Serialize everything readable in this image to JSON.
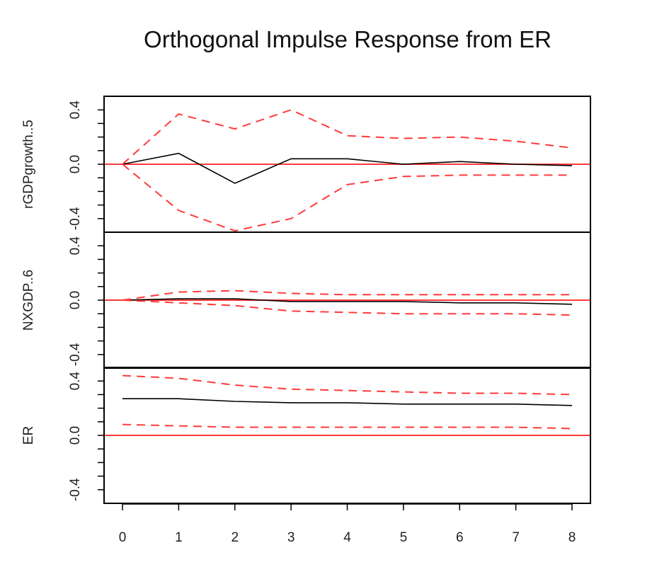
{
  "chart_data": {
    "type": "line",
    "title": "Orthogonal Impulse Response from ER",
    "x": [
      0,
      1,
      2,
      3,
      4,
      5,
      6,
      7,
      8
    ],
    "x_tick_labels": [
      "0",
      "1",
      "2",
      "3",
      "4",
      "5",
      "6",
      "7",
      "8"
    ],
    "xlim": [
      0,
      8
    ],
    "y_tick_labels": [
      "-0.4",
      "0.0",
      "0.4"
    ],
    "grid": false,
    "colors": {
      "response": "#000000",
      "bounds": "#ff3b3b",
      "zero_line": "#ff3b3b",
      "frame": "#000000"
    },
    "panels": [
      {
        "ylabel": "rGDPgrowth..5",
        "ylim": [
          -0.5,
          0.5
        ],
        "series": [
          {
            "values": [
              0.0,
              0.08,
              -0.14,
              0.04,
              0.04,
              0.0,
              0.02,
              0.0,
              -0.01
            ]
          },
          {
            "values": [
              0.0,
              0.37,
              0.26,
              0.4,
              0.21,
              0.19,
              0.2,
              0.17,
              0.12
            ]
          },
          {
            "values": [
              0.0,
              -0.34,
              -0.49,
              -0.4,
              -0.15,
              -0.09,
              -0.08,
              -0.08,
              -0.08
            ]
          }
        ],
        "zero_line": 0
      },
      {
        "ylabel": "NXGDP..6",
        "ylim": [
          -0.5,
          0.5
        ],
        "series": [
          {
            "values": [
              0.0,
              0.01,
              0.01,
              -0.01,
              -0.01,
              -0.01,
              -0.02,
              -0.02,
              -0.03
            ]
          },
          {
            "values": [
              0.0,
              0.06,
              0.07,
              0.05,
              0.04,
              0.04,
              0.04,
              0.04,
              0.04
            ]
          },
          {
            "values": [
              0.0,
              -0.02,
              -0.04,
              -0.08,
              -0.09,
              -0.1,
              -0.1,
              -0.1,
              -0.11
            ]
          }
        ],
        "zero_line": 0
      },
      {
        "ylabel": "ER",
        "ylim": [
          -0.5,
          0.5
        ],
        "series": [
          {
            "values": [
              0.27,
              0.27,
              0.25,
              0.24,
              0.24,
              0.23,
              0.23,
              0.23,
              0.22
            ]
          },
          {
            "values": [
              0.44,
              0.42,
              0.37,
              0.34,
              0.33,
              0.32,
              0.31,
              0.31,
              0.3
            ]
          },
          {
            "values": [
              0.08,
              0.07,
              0.06,
              0.06,
              0.06,
              0.06,
              0.06,
              0.06,
              0.05
            ]
          }
        ],
        "zero_line": 0
      }
    ]
  }
}
